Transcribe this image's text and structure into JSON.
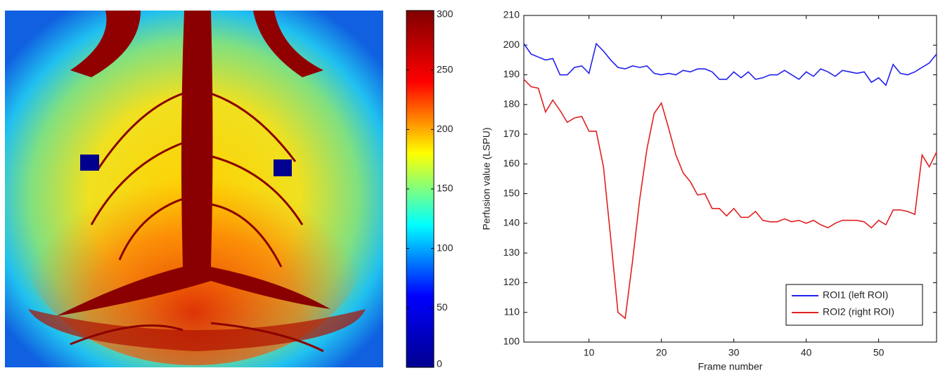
{
  "chart_data": [
    {
      "type": "colorbar",
      "ylim": [
        0,
        300
      ],
      "yticks": [
        0,
        50,
        100,
        150,
        200,
        250,
        300
      ],
      "colors": [
        "#00008f",
        "#0000ff",
        "#00ffff",
        "#ffff00",
        "#ff0000",
        "#800000"
      ]
    },
    {
      "type": "line",
      "xlabel": "Frame number",
      "ylabel": "Perfusion value (LSPU)",
      "x": [
        1,
        2,
        3,
        4,
        5,
        6,
        7,
        8,
        9,
        10,
        11,
        12,
        13,
        14,
        15,
        16,
        17,
        18,
        19,
        20,
        21,
        22,
        23,
        24,
        25,
        26,
        27,
        28,
        29,
        30,
        31,
        32,
        33,
        34,
        35,
        36,
        37,
        38,
        39,
        40,
        41,
        42,
        43,
        44,
        45,
        46,
        47,
        48,
        49,
        50,
        51,
        52,
        53,
        54,
        55,
        56,
        57,
        58
      ],
      "xlim": [
        1,
        58
      ],
      "xticks": [
        10,
        20,
        30,
        40,
        50
      ],
      "ylim": [
        100,
        210
      ],
      "yticks": [
        100,
        110,
        120,
        130,
        140,
        150,
        160,
        170,
        180,
        190,
        200,
        210
      ],
      "legend": "lower right",
      "series": [
        {
          "name": "ROI1 (left ROI)",
          "color": "#2020ee",
          "values": [
            200.5,
            197,
            196,
            195,
            195.5,
            190,
            190,
            192.5,
            193,
            190.5,
            200.5,
            198,
            195,
            192.5,
            192,
            193,
            192.5,
            193,
            190.5,
            190,
            190.5,
            190,
            191.5,
            191,
            192,
            192,
            191,
            188.5,
            188.5,
            191,
            189,
            191,
            188.5,
            189,
            190,
            190,
            191.5,
            190,
            188.5,
            191,
            189.5,
            192,
            191,
            189.5,
            191.5,
            191,
            190.5,
            191,
            187.5,
            189,
            186.5,
            193.5,
            190.5,
            190,
            191,
            192.5,
            194,
            197
          ]
        },
        {
          "name": "ROI2 (right ROI)",
          "color": "#e02020",
          "values": [
            188.5,
            186,
            185.5,
            177.5,
            181.5,
            178,
            174,
            175.5,
            176,
            171,
            171,
            159,
            135,
            110,
            108,
            127,
            148,
            165,
            177,
            180.5,
            172,
            163,
            157,
            154,
            149.5,
            150,
            145,
            145,
            142.5,
            145,
            142,
            142,
            144,
            141,
            140.5,
            140.5,
            141.5,
            140.5,
            141,
            140,
            141,
            139.5,
            138.5,
            140,
            141,
            141,
            141,
            140.5,
            138.5,
            141,
            139.5,
            144.5,
            144.5,
            144,
            143,
            163,
            159,
            164
          ]
        }
      ]
    }
  ]
}
